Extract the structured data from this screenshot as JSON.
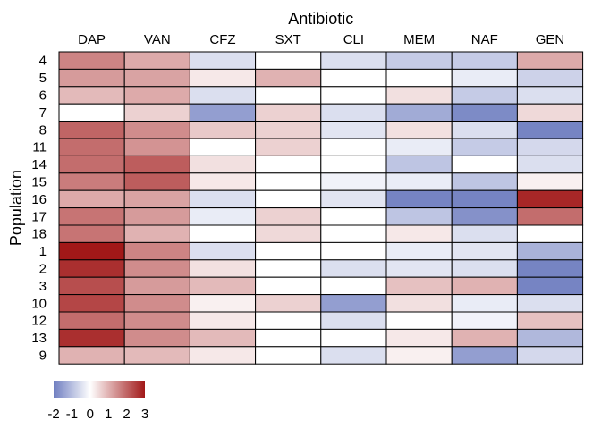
{
  "chart_data": {
    "type": "heatmap",
    "title": "",
    "xlabel": "Antibiotic",
    "ylabel": "Population",
    "columns": [
      "DAP",
      "VAN",
      "CFZ",
      "SXT",
      "CLI",
      "MEM",
      "NAF",
      "GEN"
    ],
    "rows": [
      "4",
      "5",
      "6",
      "7",
      "8",
      "11",
      "14",
      "15",
      "16",
      "17",
      "18",
      "1",
      "2",
      "3",
      "10",
      "12",
      "13",
      "9"
    ],
    "values": [
      [
        1.6,
        1.1,
        -0.5,
        0.0,
        -0.5,
        -0.8,
        -0.8,
        1.1
      ],
      [
        1.3,
        1.2,
        0.3,
        1.0,
        0.0,
        0.0,
        -0.3,
        -0.7
      ],
      [
        0.9,
        1.1,
        -0.5,
        0.0,
        0.0,
        0.4,
        -0.8,
        -0.5
      ],
      [
        0.0,
        0.6,
        -1.5,
        0.6,
        -0.5,
        -1.3,
        -1.8,
        0.5
      ],
      [
        2.0,
        1.5,
        0.7,
        0.6,
        -0.4,
        0.4,
        -0.5,
        -1.9
      ],
      [
        1.9,
        1.4,
        0.0,
        0.6,
        0.0,
        -0.3,
        -0.8,
        -0.6
      ],
      [
        1.9,
        2.1,
        0.4,
        0.0,
        0.0,
        -0.9,
        0.0,
        -0.5
      ],
      [
        1.7,
        2.1,
        0.3,
        0.0,
        -0.2,
        -0.3,
        -0.9,
        0.2
      ],
      [
        1.1,
        1.2,
        -0.5,
        0.0,
        -0.4,
        -1.9,
        -1.9,
        2.8
      ],
      [
        1.8,
        1.3,
        -0.3,
        0.6,
        0.0,
        -0.9,
        -1.7,
        1.9
      ],
      [
        1.8,
        1.0,
        0.0,
        0.5,
        0.0,
        0.3,
        -0.5,
        0.0
      ],
      [
        3.2,
        1.6,
        -0.5,
        0.0,
        0.0,
        -0.3,
        -0.4,
        -1.2
      ],
      [
        2.7,
        1.5,
        0.4,
        0.0,
        -0.5,
        -0.4,
        -0.5,
        -1.9
      ],
      [
        2.3,
        1.3,
        0.9,
        0.0,
        0.0,
        0.8,
        1.0,
        -1.9
      ],
      [
        2.4,
        1.5,
        0.2,
        0.6,
        -1.5,
        0.4,
        -0.3,
        -0.5
      ],
      [
        1.9,
        1.5,
        0.3,
        0.0,
        -0.5,
        0.0,
        -0.2,
        0.8
      ],
      [
        2.7,
        1.5,
        0.9,
        0.0,
        0.0,
        0.3,
        1.0,
        -1.1
      ],
      [
        1.0,
        0.9,
        0.3,
        0.0,
        -0.5,
        0.2,
        -1.5,
        -0.6
      ]
    ],
    "scale": {
      "min": -2,
      "max": 3,
      "low_color": "#6f7ec0",
      "mid_color": "#ffffff",
      "high_color": "#a11818",
      "ticks": [
        "-2",
        "-1",
        "0",
        "1",
        "2",
        "3"
      ]
    },
    "legend_placement": "bottom-left",
    "grid": true
  }
}
